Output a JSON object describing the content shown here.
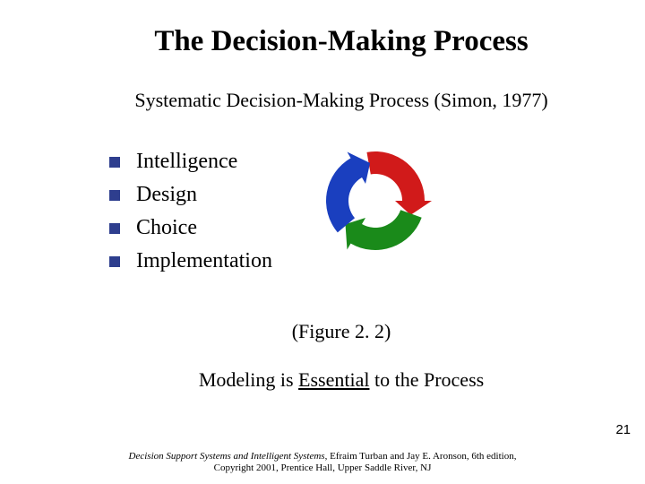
{
  "sidebar": {
    "blocks": [
      {
        "color": "#0a5a4a"
      },
      {
        "color": "#0f9a7f"
      },
      {
        "color": "#0d3ca8"
      },
      {
        "color": "#3a6fd8"
      },
      {
        "color": "#6699e6"
      },
      {
        "color": "#6699e6"
      },
      {
        "color": "#3a6fd8"
      },
      {
        "color": "#0d3ca8"
      },
      {
        "color": "#0f9a7f"
      }
    ]
  },
  "title": "The Decision-Making Process",
  "subtitle": "Systematic Decision-Making Process (Simon, 1977)",
  "bullets": {
    "square_color": "#2e3e8e",
    "items": [
      {
        "label": "Intelligence"
      },
      {
        "label": "Design"
      },
      {
        "label": "Choice"
      },
      {
        "label": "Implementation"
      }
    ]
  },
  "arrows": {
    "colors": {
      "top": "#d11a1a",
      "right": "#1a8a1a",
      "bottom": "#1a3fbf"
    },
    "size": 130
  },
  "figure_caption": "(Figure 2. 2)",
  "bottom_line": {
    "prefix": "Modeling is ",
    "underlined": "Essential",
    "suffix": " to the Process"
  },
  "page_number": "21",
  "footer": {
    "line1_book": "Decision Support Systems and Intelligent Systems",
    "line1_authors": ", Efraim Turban and Jay E. Aronson, 6th edition,",
    "line2": "Copyright 2001, Prentice Hall, Upper Saddle River, NJ"
  }
}
